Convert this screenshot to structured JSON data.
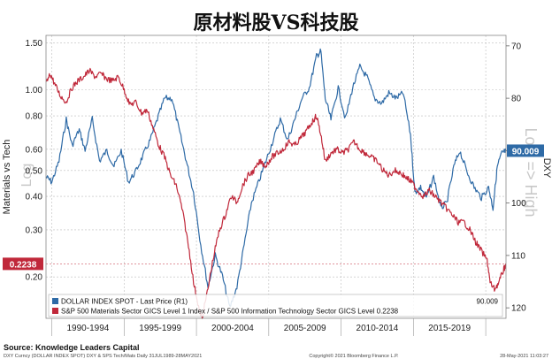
{
  "chart_data": {
    "type": "line",
    "title": "原材料股VS科技股",
    "left_axis": {
      "label": "Materials vs Tech",
      "scale": "log",
      "ticks": [
        "1.50",
        "1.00",
        "0.80",
        "0.60",
        "0.50",
        "0.40",
        "0.30",
        "0.20"
      ],
      "range": [
        0.14,
        1.6
      ],
      "watermark": "Log"
    },
    "right_axis": {
      "label": "DXY",
      "inverted": true,
      "ticks": [
        "70",
        "80",
        "90",
        "100",
        "110",
        "120"
      ],
      "range": [
        68,
        122
      ],
      "watermark": "Low => High"
    },
    "x_axis": {
      "range": [
        1989.6,
        2021.4
      ],
      "period_labels": [
        "1990-1994",
        "1995-1999",
        "2000-2004",
        "2005-2009",
        "2010-2014",
        "2015-2019"
      ]
    },
    "grid": true,
    "legend_placement": "bottom-left",
    "series": [
      {
        "name": "DOLLAR INDEX SPOT - Last Price (R1)",
        "axis": "right",
        "color": "#2e6aa6",
        "last_value": "90.009",
        "points": [
          [
            1989.6,
            95
          ],
          [
            1990.0,
            96
          ],
          [
            1990.5,
            92
          ],
          [
            1991.0,
            84
          ],
          [
            1991.4,
            89
          ],
          [
            1991.9,
            86
          ],
          [
            1992.3,
            90
          ],
          [
            1992.8,
            84
          ],
          [
            1993.3,
            92
          ],
          [
            1993.8,
            90
          ],
          [
            1994.3,
            93
          ],
          [
            1994.8,
            90
          ],
          [
            1995.3,
            96
          ],
          [
            1995.8,
            94
          ],
          [
            1996.3,
            91
          ],
          [
            1996.8,
            88
          ],
          [
            1997.3,
            84
          ],
          [
            1997.8,
            80
          ],
          [
            1998.3,
            80
          ],
          [
            1998.8,
            86
          ],
          [
            1999.3,
            92
          ],
          [
            1999.8,
            98
          ],
          [
            2000.3,
            108
          ],
          [
            2000.8,
            116
          ],
          [
            2001.3,
            110
          ],
          [
            2001.8,
            114
          ],
          [
            2002.3,
            120
          ],
          [
            2002.8,
            116
          ],
          [
            2003.3,
            108
          ],
          [
            2003.8,
            100
          ],
          [
            2004.3,
            96
          ],
          [
            2004.8,
            92
          ],
          [
            2005.3,
            88
          ],
          [
            2005.8,
            84
          ],
          [
            2006.3,
            88
          ],
          [
            2006.8,
            84
          ],
          [
            2007.3,
            80
          ],
          [
            2007.8,
            78
          ],
          [
            2008.3,
            72
          ],
          [
            2008.6,
            71
          ],
          [
            2008.9,
            80
          ],
          [
            2009.3,
            84
          ],
          [
            2009.8,
            78
          ],
          [
            2010.3,
            84
          ],
          [
            2010.8,
            78
          ],
          [
            2011.3,
            74
          ],
          [
            2011.8,
            76
          ],
          [
            2012.3,
            80
          ],
          [
            2012.8,
            81
          ],
          [
            2013.3,
            79
          ],
          [
            2013.8,
            80
          ],
          [
            2014.3,
            79
          ],
          [
            2014.8,
            87
          ],
          [
            2015.1,
            98
          ],
          [
            2015.5,
            97
          ],
          [
            2015.9,
            99
          ],
          [
            2016.4,
            95
          ],
          [
            2016.9,
            101
          ],
          [
            2017.3,
            100
          ],
          [
            2017.8,
            93
          ],
          [
            2018.2,
            90
          ],
          [
            2018.7,
            94
          ],
          [
            2019.2,
            97
          ],
          [
            2019.7,
            99
          ],
          [
            2020.2,
            97
          ],
          [
            2020.5,
            101
          ],
          [
            2020.8,
            93
          ],
          [
            2021.1,
            90.5
          ],
          [
            2021.4,
            90.009
          ]
        ]
      },
      {
        "name": "S&P 500 Materials Sector GICS Level 1 Index / S&P 500 Information Technology Sector GICS Level 0.2238",
        "axis": "left",
        "color": "#c0283a",
        "last_value": "0.2238",
        "points": [
          [
            1989.6,
            1.05
          ],
          [
            1989.9,
            1.15
          ],
          [
            1990.2,
            1.05
          ],
          [
            1990.6,
            0.95
          ],
          [
            1991.0,
            0.9
          ],
          [
            1991.4,
            1.02
          ],
          [
            1991.8,
            1.08
          ],
          [
            1992.2,
            1.12
          ],
          [
            1992.6,
            1.18
          ],
          [
            1993.0,
            1.12
          ],
          [
            1993.4,
            1.15
          ],
          [
            1993.8,
            1.1
          ],
          [
            1994.2,
            1.08
          ],
          [
            1994.6,
            1.12
          ],
          [
            1995.0,
            1.0
          ],
          [
            1995.4,
            0.88
          ],
          [
            1995.8,
            0.9
          ],
          [
            1996.2,
            0.82
          ],
          [
            1996.6,
            0.84
          ],
          [
            1997.0,
            0.72
          ],
          [
            1997.4,
            0.62
          ],
          [
            1997.8,
            0.56
          ],
          [
            1998.2,
            0.48
          ],
          [
            1998.6,
            0.44
          ],
          [
            1999.0,
            0.36
          ],
          [
            1999.4,
            0.27
          ],
          [
            1999.8,
            0.19
          ],
          [
            2000.2,
            0.15
          ],
          [
            2000.4,
            0.14
          ],
          [
            2000.8,
            0.18
          ],
          [
            2001.2,
            0.24
          ],
          [
            2001.6,
            0.3
          ],
          [
            2002.0,
            0.34
          ],
          [
            2002.4,
            0.4
          ],
          [
            2002.8,
            0.38
          ],
          [
            2003.2,
            0.44
          ],
          [
            2003.6,
            0.48
          ],
          [
            2004.0,
            0.5
          ],
          [
            2004.4,
            0.54
          ],
          [
            2004.8,
            0.52
          ],
          [
            2005.2,
            0.56
          ],
          [
            2005.6,
            0.58
          ],
          [
            2006.0,
            0.6
          ],
          [
            2006.4,
            0.64
          ],
          [
            2006.8,
            0.62
          ],
          [
            2007.2,
            0.66
          ],
          [
            2007.6,
            0.7
          ],
          [
            2008.0,
            0.76
          ],
          [
            2008.3,
            0.8
          ],
          [
            2008.6,
            0.68
          ],
          [
            2008.9,
            0.54
          ],
          [
            2009.3,
            0.58
          ],
          [
            2009.7,
            0.6
          ],
          [
            2010.1,
            0.58
          ],
          [
            2010.5,
            0.6
          ],
          [
            2010.9,
            0.64
          ],
          [
            2011.3,
            0.6
          ],
          [
            2011.7,
            0.58
          ],
          [
            2012.1,
            0.56
          ],
          [
            2012.5,
            0.54
          ],
          [
            2012.9,
            0.5
          ],
          [
            2013.3,
            0.48
          ],
          [
            2013.7,
            0.5
          ],
          [
            2014.1,
            0.49
          ],
          [
            2014.5,
            0.47
          ],
          [
            2014.9,
            0.45
          ],
          [
            2015.3,
            0.42
          ],
          [
            2015.7,
            0.4
          ],
          [
            2016.1,
            0.42
          ],
          [
            2016.5,
            0.4
          ],
          [
            2016.9,
            0.38
          ],
          [
            2017.3,
            0.36
          ],
          [
            2017.7,
            0.34
          ],
          [
            2018.1,
            0.32
          ],
          [
            2018.5,
            0.32
          ],
          [
            2018.9,
            0.3
          ],
          [
            2019.3,
            0.27
          ],
          [
            2019.7,
            0.25
          ],
          [
            2020.1,
            0.23
          ],
          [
            2020.3,
            0.19
          ],
          [
            2020.6,
            0.18
          ],
          [
            2020.9,
            0.19
          ],
          [
            2021.2,
            0.21
          ],
          [
            2021.4,
            0.2238
          ]
        ]
      }
    ],
    "source": "Source:  Knowledge Leaders Capital",
    "footer_left": "DXY Curncy (DOLLAR INDEX SPOT) DXY & SPS Tech/Mats  Daily 31JUL1989-28MAY2021",
    "footer_center": "Copyright© 2021 Bloomberg Finance L.P.",
    "footer_right": "28-May-2021 11:03:27"
  }
}
